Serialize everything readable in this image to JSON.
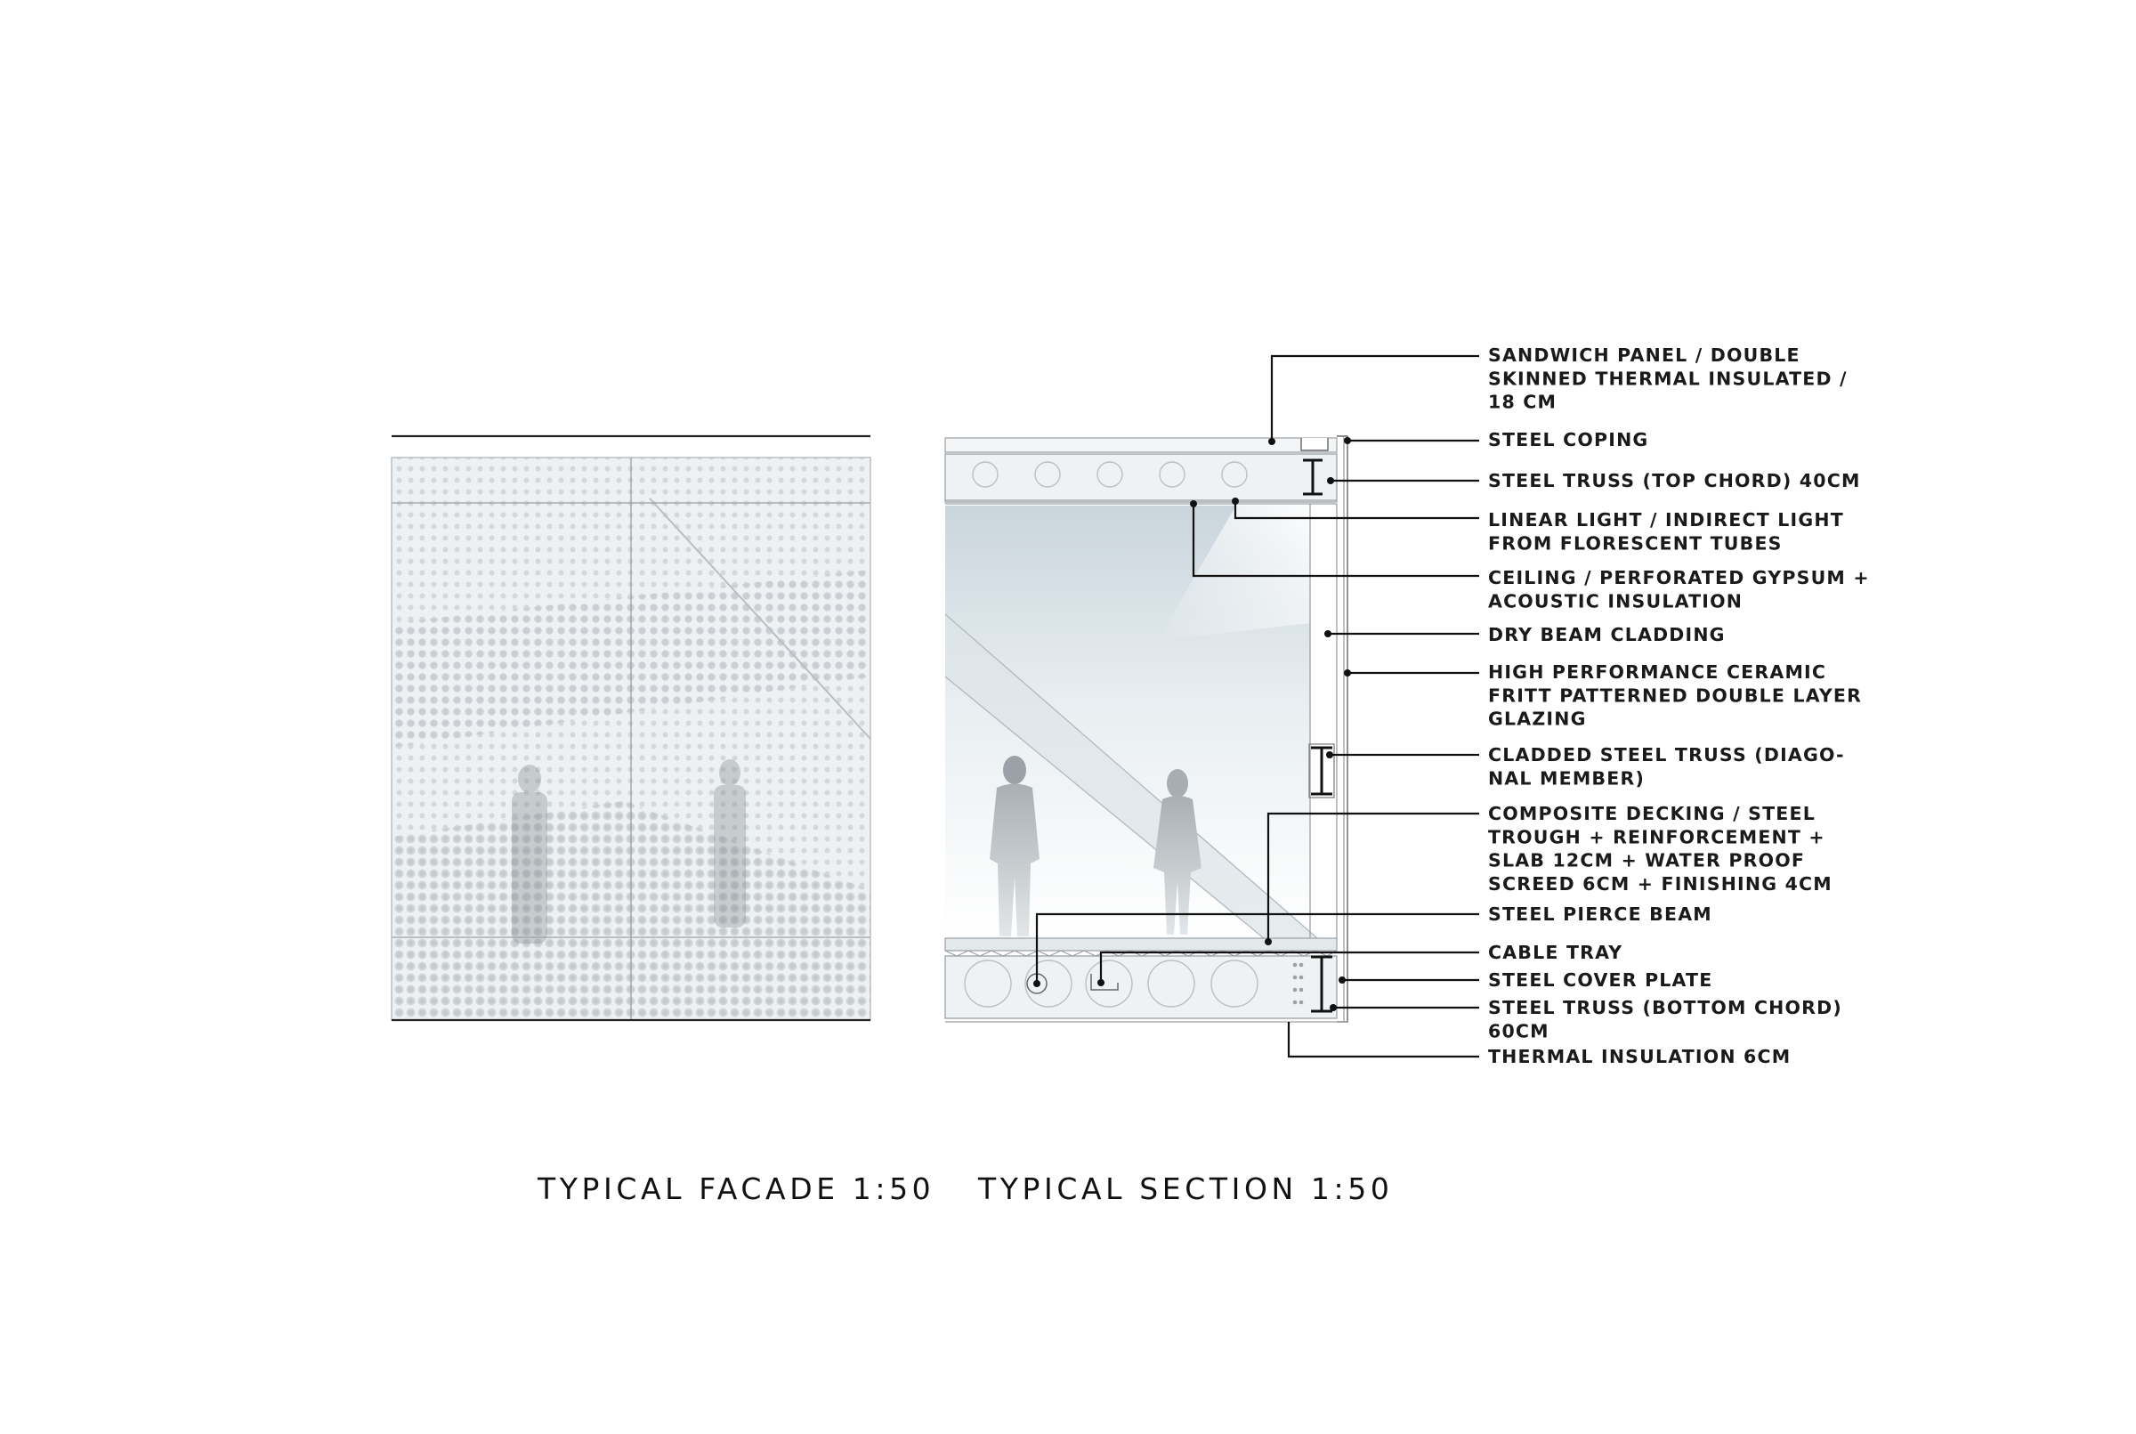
{
  "titles": {
    "facade": "TYPICAL FACADE 1:50",
    "section": "TYPICAL SECTION 1:50"
  },
  "notes": [
    {
      "id": "sandwich-panel",
      "lines": [
        "SANDWICH PANEL / DOUBLE",
        "SKINNED THERMAL INSULATED /",
        "18 CM"
      ]
    },
    {
      "id": "steel-coping",
      "lines": [
        "STEEL COPING"
      ]
    },
    {
      "id": "top-chord",
      "lines": [
        "STEEL TRUSS (TOP CHORD) 40CM"
      ]
    },
    {
      "id": "linear-light",
      "lines": [
        "LINEAR LIGHT / INDIRECT LIGHT",
        "FROM FLORESCENT TUBES"
      ]
    },
    {
      "id": "ceiling",
      "lines": [
        "CEILING / PERFORATED GYPSUM +",
        "ACOUSTIC INSULATION"
      ]
    },
    {
      "id": "dry-beam",
      "lines": [
        "DRY BEAM CLADDING"
      ]
    },
    {
      "id": "glazing",
      "lines": [
        "HIGH PERFORMANCE CERAMIC",
        "FRITT PATTERNED DOUBLE LAYER",
        "GLAZING"
      ]
    },
    {
      "id": "diagonal",
      "lines": [
        "CLADDED STEEL TRUSS (DIAGO-",
        "NAL MEMBER)"
      ]
    },
    {
      "id": "decking",
      "lines": [
        "COMPOSITE DECKING / STEEL",
        "TROUGH + REINFORCEMENT +",
        "SLAB 12CM + WATER PROOF",
        "SCREED 6CM + FINISHING 4CM"
      ]
    },
    {
      "id": "pierce-beam",
      "lines": [
        "STEEL PIERCE BEAM"
      ]
    },
    {
      "id": "cable-tray",
      "lines": [
        "CABLE TRAY"
      ]
    },
    {
      "id": "cover-plate",
      "lines": [
        "STEEL COVER PLATE"
      ]
    },
    {
      "id": "bottom-chord",
      "lines": [
        "STEEL TRUSS (BOTTOM CHORD)",
        "60CM"
      ]
    },
    {
      "id": "insulation",
      "lines": [
        "THERMAL INSULATION 6CM"
      ]
    }
  ]
}
